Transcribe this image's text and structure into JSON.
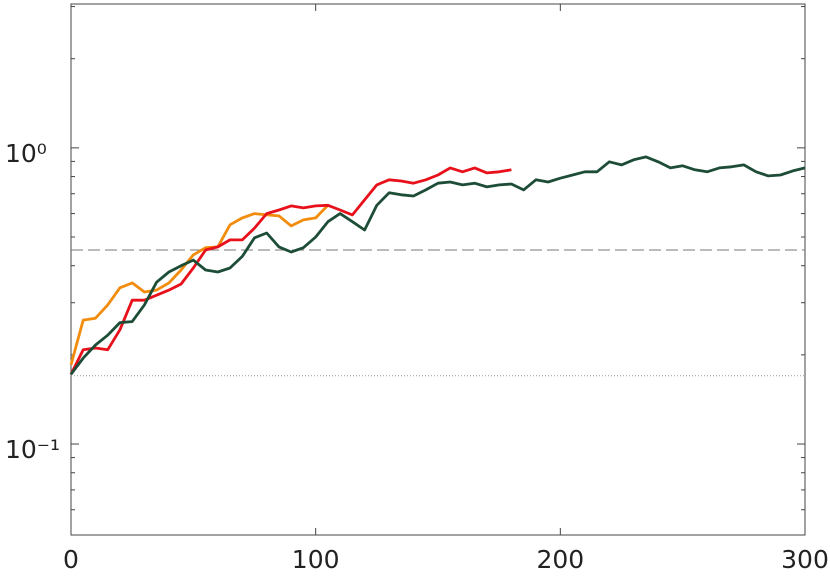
{
  "chart_data": {
    "type": "line",
    "x": [
      0,
      5,
      10,
      15,
      20,
      25,
      30,
      35,
      40,
      45,
      50,
      55,
      60,
      65,
      70,
      75,
      80,
      85,
      90,
      95,
      100,
      105,
      110,
      115,
      120,
      125,
      130,
      135,
      140,
      145,
      150,
      155,
      160,
      165,
      170,
      175,
      180,
      185,
      190,
      195,
      200,
      205,
      210,
      215,
      220,
      225,
      230,
      235,
      240,
      245,
      250,
      255,
      260,
      265,
      270,
      275,
      280,
      285,
      290,
      295,
      300
    ],
    "series": [
      {
        "color": "#1d4d36",
        "values": [
          0.172,
          0.195,
          0.216,
          0.233,
          0.257,
          0.259,
          0.295,
          0.352,
          0.381,
          0.4,
          0.418,
          0.387,
          0.381,
          0.393,
          0.43,
          0.497,
          0.516,
          0.463,
          0.445,
          0.46,
          0.5,
          0.563,
          0.6,
          0.563,
          0.528,
          0.64,
          0.705,
          0.694,
          0.688,
          0.721,
          0.76,
          0.767,
          0.75,
          0.76,
          0.738,
          0.75,
          0.755,
          0.721,
          0.78,
          0.767,
          0.79,
          0.81,
          0.83,
          0.83,
          0.897,
          0.876,
          0.911,
          0.932,
          0.897,
          0.856,
          0.87,
          0.843,
          0.83,
          0.856,
          0.863,
          0.876,
          0.83,
          0.804,
          0.81,
          0.836,
          0.856
        ]
      },
      {
        "color": "#e8111b",
        "values": [
          0.172,
          0.208,
          0.211,
          0.208,
          0.243,
          0.306,
          0.306,
          0.318,
          0.331,
          0.347,
          0.393,
          0.452,
          0.463,
          0.489,
          0.489,
          0.536,
          0.6,
          0.617,
          0.637,
          0.627,
          0.637,
          0.64,
          0.617,
          0.594,
          0.667,
          0.75,
          0.78,
          0.773,
          0.76,
          0.78,
          0.81,
          0.856,
          0.83,
          0.856,
          0.823,
          0.83,
          0.843,
          null,
          null,
          null,
          null,
          null,
          null,
          null,
          null,
          null,
          null,
          null,
          null,
          null,
          null,
          null,
          null,
          null,
          null,
          null,
          null,
          null,
          null,
          null,
          null
        ]
      },
      {
        "color": "#f28c0c",
        "values": [
          0.185,
          0.262,
          0.266,
          0.295,
          0.337,
          0.35,
          0.326,
          0.331,
          0.35,
          0.387,
          0.435,
          0.46,
          0.463,
          0.55,
          0.58,
          0.6,
          0.594,
          0.589,
          0.545,
          0.571,
          0.58,
          0.64,
          null,
          null,
          null,
          null,
          null,
          null,
          null,
          null,
          null,
          null,
          null,
          null,
          null,
          null,
          null,
          null,
          null,
          null,
          null,
          null,
          null,
          null,
          null,
          null,
          null,
          null,
          null,
          null,
          null,
          null,
          null,
          null,
          null,
          null,
          null,
          null,
          null,
          null,
          null
        ]
      }
    ],
    "hlines": [
      {
        "value": 0.452,
        "style": "dashed"
      },
      {
        "value": 0.17,
        "style": "dotted"
      }
    ],
    "xlim": [
      0,
      300
    ],
    "xticks": [
      0,
      100,
      200,
      300
    ],
    "ylim": [
      0.0493,
      3.06
    ],
    "log_y": true,
    "yticks": [
      {
        "value": 1,
        "label": "10⁰"
      },
      {
        "value": 0.1,
        "label": "10⁻¹"
      }
    ],
    "yminor_ticks": [
      0.06,
      0.07,
      0.08,
      0.09,
      0.2,
      0.3,
      0.4,
      0.5,
      0.6,
      0.7,
      0.8,
      0.9,
      2,
      3
    ]
  }
}
